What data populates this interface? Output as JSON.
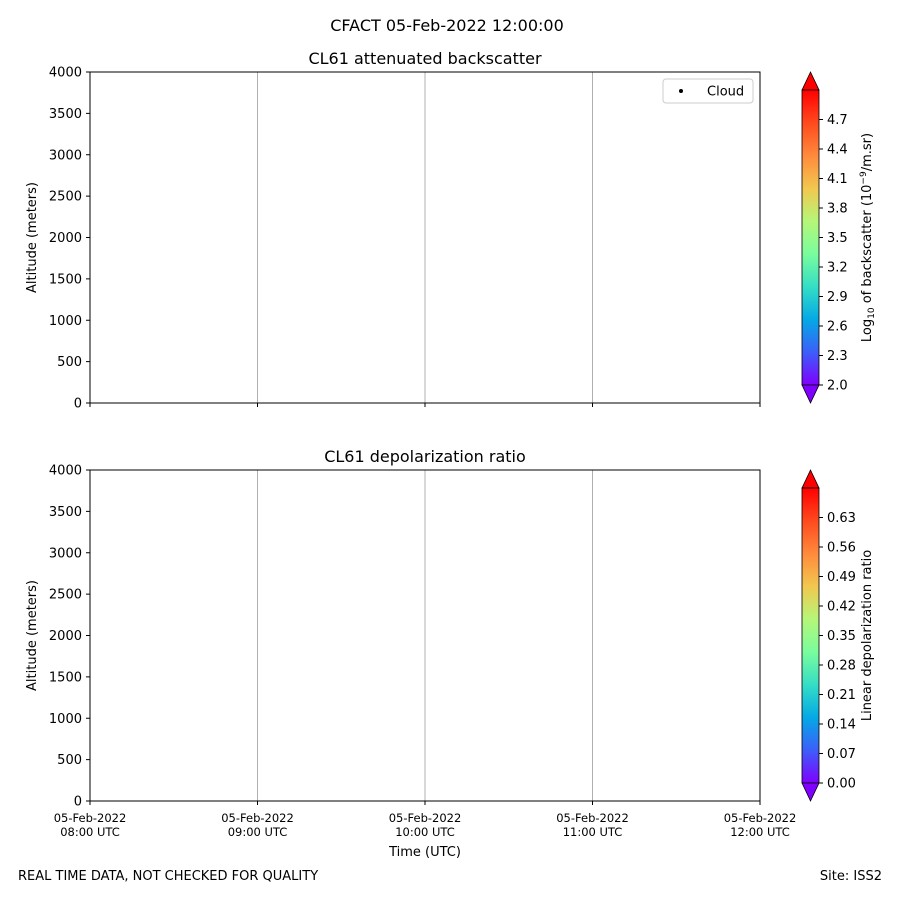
{
  "figure": {
    "suptitle": "CFACT 05-Feb-2022 12:00:00",
    "footer_left": "REAL TIME DATA, NOT CHECKED FOR QUALITY",
    "footer_right": "Site: ISS2"
  },
  "chart_data": [
    {
      "type": "heatmap",
      "title": "CL61 attenuated backscatter",
      "xlabel": "",
      "ylabel": "Altitude (meters)",
      "x_ticks": [],
      "y_ticks": [
        0,
        500,
        1000,
        1500,
        2000,
        2500,
        3000,
        3500,
        4000
      ],
      "ylim": [
        0,
        4000
      ],
      "grid": "x",
      "legend": {
        "position": "top-right",
        "entries": [
          {
            "label": "Cloud",
            "marker": "point",
            "color": "#000000"
          }
        ]
      },
      "colorbar": {
        "label_parts": [
          "Log",
          "10",
          " of backscatter (10",
          "−9",
          "/m.sr)"
        ],
        "ticks": [
          "2.0",
          "2.3",
          "2.6",
          "2.9",
          "3.2",
          "3.5",
          "3.8",
          "4.1",
          "4.4",
          "4.7"
        ],
        "range": [
          2.0,
          5.0
        ],
        "colormap": "rainbow",
        "extend": "both"
      },
      "values": []
    },
    {
      "type": "heatmap",
      "title": "CL61 depolarization ratio",
      "xlabel": "Time (UTC)",
      "ylabel": "Altitude (meters)",
      "x_ticks": [
        [
          "05-Feb-2022",
          "08:00 UTC"
        ],
        [
          "05-Feb-2022",
          "09:00 UTC"
        ],
        [
          "05-Feb-2022",
          "10:00 UTC"
        ],
        [
          "05-Feb-2022",
          "11:00 UTC"
        ],
        [
          "05-Feb-2022",
          "12:00 UTC"
        ]
      ],
      "y_ticks": [
        0,
        500,
        1000,
        1500,
        2000,
        2500,
        3000,
        3500,
        4000
      ],
      "ylim": [
        0,
        4000
      ],
      "grid": "x",
      "colorbar": {
        "label_parts": [
          "Linear depolarization ratio"
        ],
        "ticks": [
          "0.00",
          "0.07",
          "0.14",
          "0.21",
          "0.28",
          "0.35",
          "0.42",
          "0.49",
          "0.56",
          "0.63"
        ],
        "range": [
          0.0,
          0.7
        ],
        "colormap": "rainbow",
        "extend": "both"
      },
      "values": []
    }
  ]
}
